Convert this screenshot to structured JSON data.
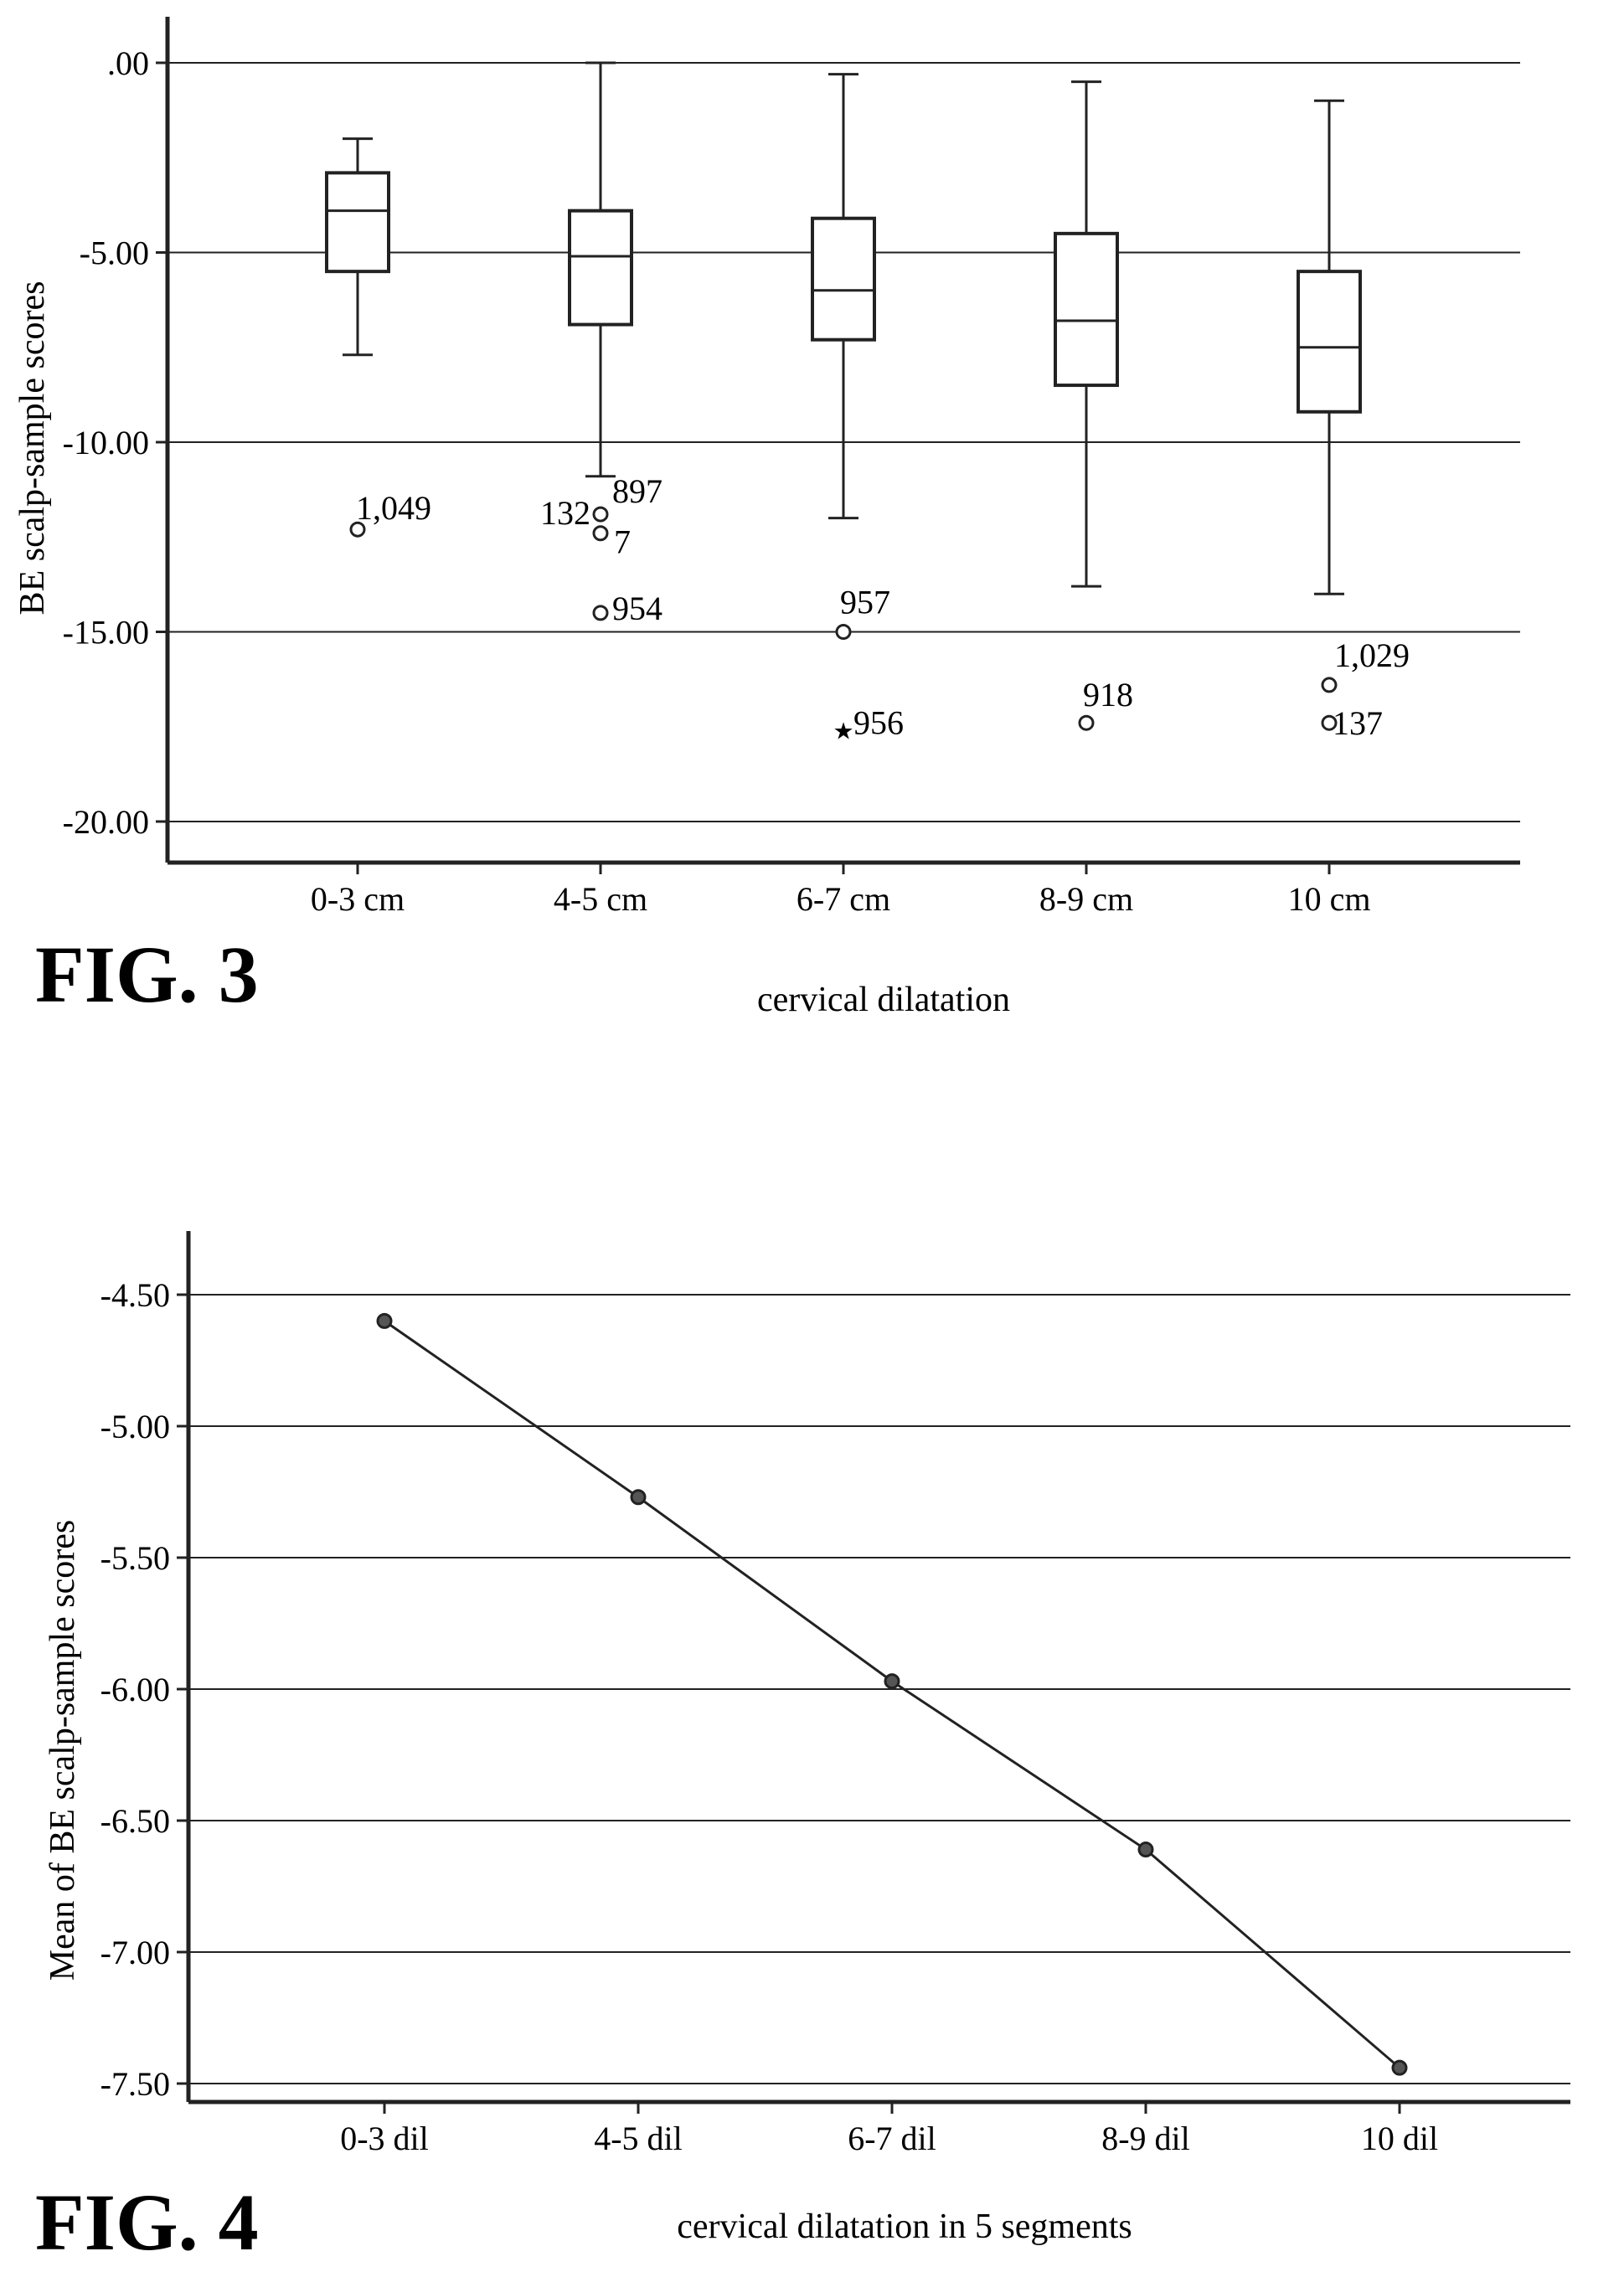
{
  "figures": [
    {
      "label": "FIG. 3"
    },
    {
      "label": "FIG. 4"
    }
  ],
  "chart_data": [
    {
      "type": "box",
      "xlabel": "cervical dilatation",
      "ylabel": "BE scalp-sample scores",
      "ylim": [
        -21,
        1.2
      ],
      "yticks": [
        0,
        -5,
        -10,
        -15,
        -20
      ],
      "ytick_labels": [
        ".00",
        "-5.00",
        "-10.00",
        "-15.00",
        "-20.00"
      ],
      "grid": true,
      "categories": [
        "0-3 cm",
        "4-5 cm",
        "6-7 cm",
        "8-9 cm",
        "10 cm"
      ],
      "boxes": [
        {
          "category": "0-3 cm",
          "whisker_high": -2.0,
          "q3": -2.9,
          "median": -3.9,
          "q1": -5.5,
          "whisker_low": -7.7
        },
        {
          "category": "4-5 cm",
          "whisker_high": 0.0,
          "q3": -3.9,
          "median": -5.1,
          "q1": -6.9,
          "whisker_low": -10.9
        },
        {
          "category": "6-7 cm",
          "whisker_high": -0.3,
          "q3": -4.1,
          "median": -6.0,
          "q1": -7.3,
          "whisker_low": -12.0
        },
        {
          "category": "8-9 cm",
          "whisker_high": -0.5,
          "q3": -4.5,
          "median": -6.8,
          "q1": -8.5,
          "whisker_low": -13.8
        },
        {
          "category": "10 cm",
          "whisker_high": -1.0,
          "q3": -5.5,
          "median": -7.5,
          "q1": -9.2,
          "whisker_low": -14.0
        }
      ],
      "outliers": [
        {
          "category": "0-3 cm",
          "value": -12.3,
          "label": "1,049",
          "marker": "circle"
        },
        {
          "category": "4-5 cm",
          "value": -11.9,
          "label": "897",
          "marker": "circle"
        },
        {
          "category": "4-5 cm",
          "value": -11.9,
          "label": "132",
          "marker": "none"
        },
        {
          "category": "4-5 cm",
          "value": -12.4,
          "label": "7",
          "marker": "circle"
        },
        {
          "category": "4-5 cm",
          "value": -14.5,
          "label": "954",
          "marker": "circle"
        },
        {
          "category": "6-7 cm",
          "value": -15.0,
          "label": "957",
          "marker": "circle"
        },
        {
          "category": "6-7 cm",
          "value": -17.6,
          "label": "956",
          "marker": "star"
        },
        {
          "category": "8-9 cm",
          "value": -17.4,
          "label": "918",
          "marker": "circle"
        },
        {
          "category": "10 cm",
          "value": -16.4,
          "label": "1,029",
          "marker": "circle"
        },
        {
          "category": "10 cm",
          "value": -17.4,
          "label": "137",
          "marker": "circle"
        }
      ]
    },
    {
      "type": "line",
      "xlabel": "cervical dilatation in 5 segments",
      "ylabel": "Mean of BE scalp-sample scores",
      "ylim": [
        -7.67,
        -4.38
      ],
      "yticks": [
        -4.5,
        -5.0,
        -5.5,
        -6.0,
        -6.5,
        -7.0,
        -7.5
      ],
      "ytick_labels": [
        "-4.50",
        "-5.00",
        "-5.50",
        "-6.00",
        "-6.50",
        "-7.00",
        "-7.50"
      ],
      "grid": true,
      "categories": [
        "0-3 dil",
        "4-5 dil",
        "6-7 dil",
        "8-9 dil",
        "10 dil"
      ],
      "values": [
        -4.6,
        -5.27,
        -5.97,
        -6.61,
        -7.44
      ]
    }
  ]
}
